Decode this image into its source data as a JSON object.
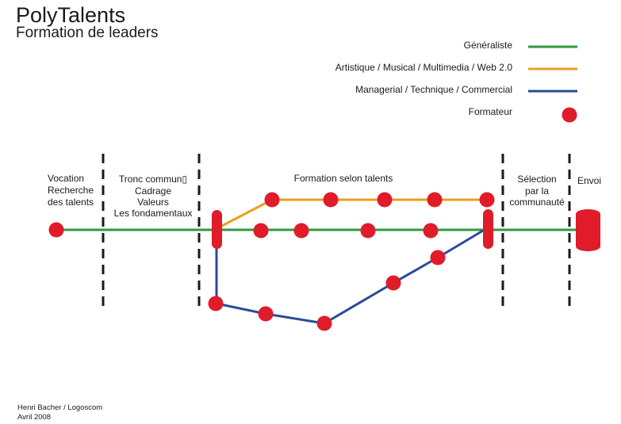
{
  "title": "PolyTalents",
  "subtitle": "Formation de leaders",
  "legend": [
    {
      "label": "Généraliste",
      "color": "#2e9a3e"
    },
    {
      "label": "Artistique / Musical / Multimedia / Web 2.0",
      "color": "#e8a020"
    },
    {
      "label": "Managerial / Technique / Commercial",
      "color": "#2b4a9a"
    },
    {
      "label": "Formateur",
      "color": "#e01b2a"
    }
  ],
  "stages": [
    {
      "lines": [
        "Vocation",
        "Recherche",
        "des talents"
      ]
    },
    {
      "lines": [
        "Tronc commun▯",
        "Cadrage",
        "Valeurs",
        "Les fondamentaux"
      ]
    },
    {
      "lines": [
        "Formation selon talents"
      ]
    },
    {
      "lines": [
        "Sélection",
        "par la",
        "communauté"
      ]
    },
    {
      "lines": [
        "Envoi"
      ]
    }
  ],
  "credit": {
    "line1": "Henri Bacher / Logoscom",
    "line2": "Avril 2008"
  }
}
